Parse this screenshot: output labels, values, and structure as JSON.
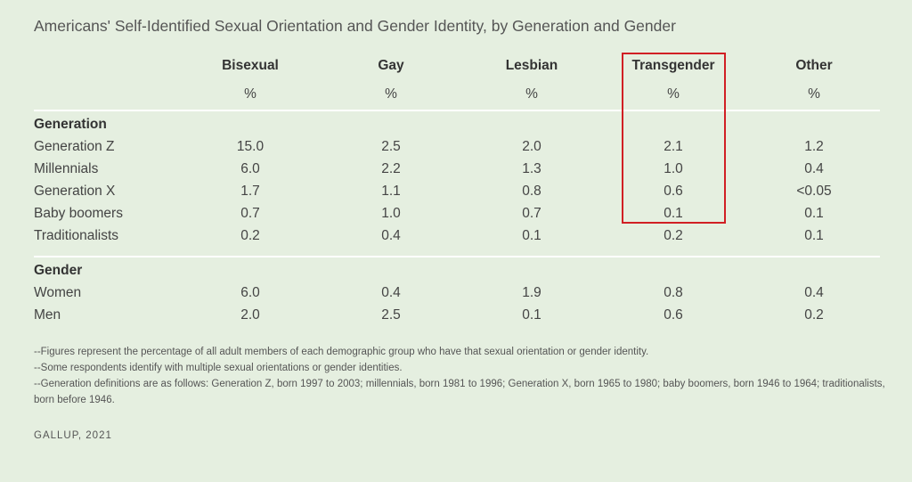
{
  "chart_data": {
    "type": "table",
    "title": "Americans' Self-Identified Sexual Orientation and Gender Identity, by Generation and Gender",
    "columns": [
      {
        "label": "Bisexual",
        "unit": "%"
      },
      {
        "label": "Gay",
        "unit": "%"
      },
      {
        "label": "Lesbian",
        "unit": "%"
      },
      {
        "label": "Transgender",
        "unit": "%"
      },
      {
        "label": "Other",
        "unit": "%"
      }
    ],
    "highlighted_column": "Transgender",
    "highlight_color": "#d11f24",
    "sections": [
      {
        "label": "Generation",
        "rows": [
          {
            "label": "Generation Z",
            "values": [
              "15.0",
              "2.5",
              "2.0",
              "2.1",
              "1.2"
            ]
          },
          {
            "label": "Millennials",
            "values": [
              "6.0",
              "2.2",
              "1.3",
              "1.0",
              "0.4"
            ]
          },
          {
            "label": "Generation X",
            "values": [
              "1.7",
              "1.1",
              "0.8",
              "0.6",
              "<0.05"
            ]
          },
          {
            "label": "Baby boomers",
            "values": [
              "0.7",
              "1.0",
              "0.7",
              "0.1",
              "0.1"
            ]
          },
          {
            "label": "Traditionalists",
            "values": [
              "0.2",
              "0.4",
              "0.1",
              "0.2",
              "0.1"
            ]
          }
        ]
      },
      {
        "label": "Gender",
        "rows": [
          {
            "label": "Women",
            "values": [
              "6.0",
              "0.4",
              "1.9",
              "0.8",
              "0.4"
            ]
          },
          {
            "label": "Men",
            "values": [
              "2.0",
              "2.5",
              "0.1",
              "0.6",
              "0.2"
            ]
          }
        ]
      }
    ],
    "notes": [
      "--Figures represent the percentage of all adult members of each demographic group who have that sexual orientation or gender identity.",
      "--Some respondents identify with multiple sexual orientations or gender identities.",
      "--Generation definitions are as follows: Generation Z, born 1997 to 2003; millennials, born 1981 to 1996; Generation X, born 1965 to 1980; baby boomers, born 1946 to 1964; traditionalists, born before 1946."
    ],
    "source": "GALLUP, 2021"
  }
}
